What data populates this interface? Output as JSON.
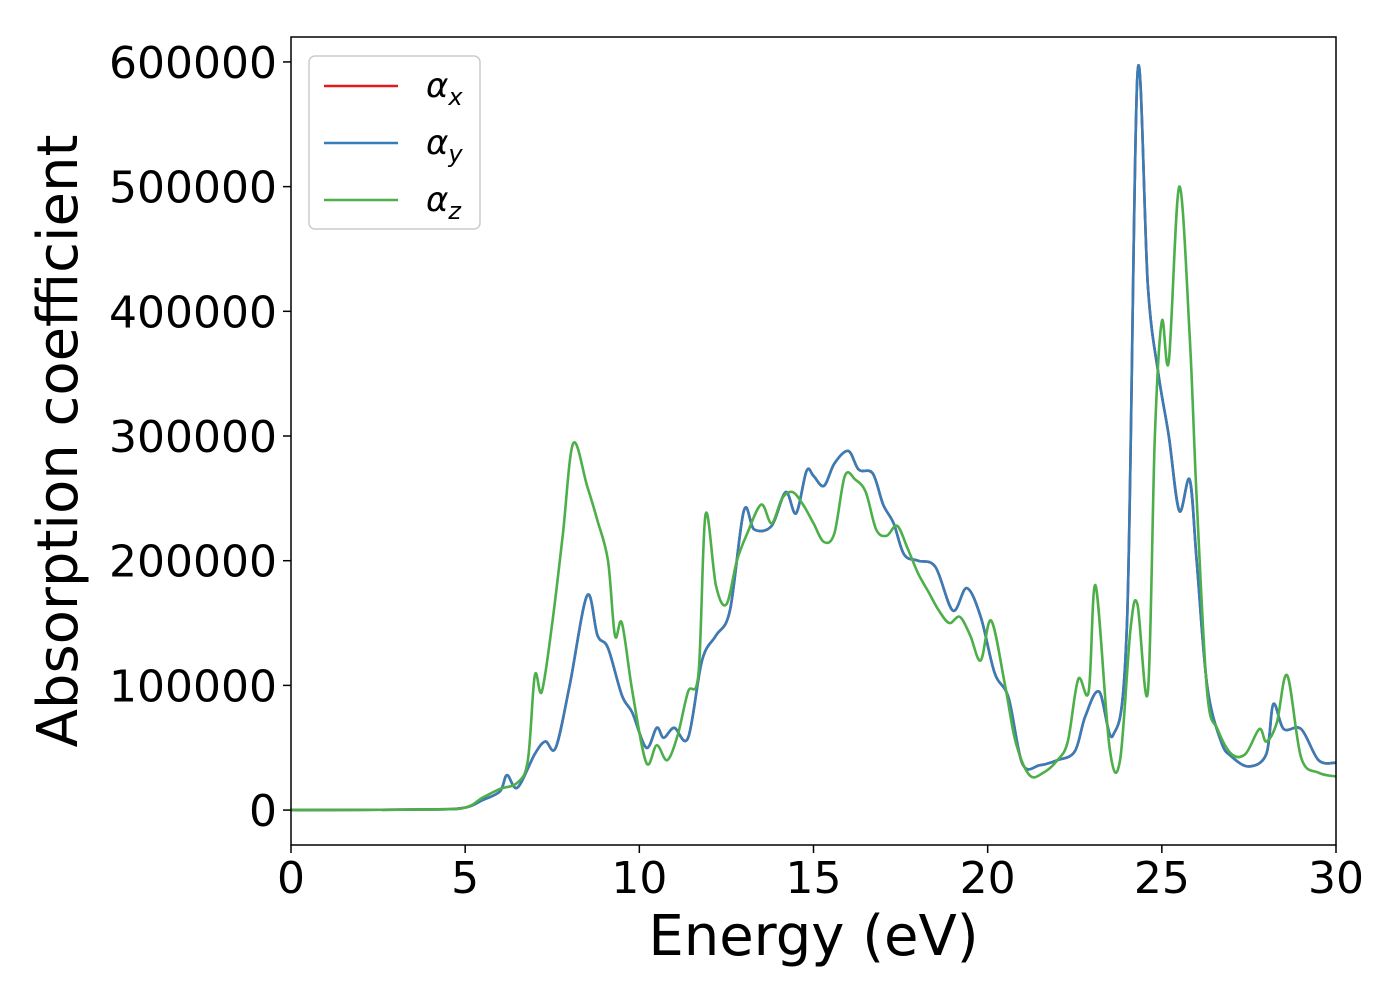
{
  "chart_data": {
    "type": "line",
    "title": "",
    "xlabel": "Energy (eV)",
    "ylabel": "Absorption coefficient",
    "xlim": [
      0,
      30
    ],
    "ylim": [
      -28000,
      620000
    ],
    "xticks": [
      0,
      5,
      10,
      15,
      20,
      25,
      30
    ],
    "yticks": [
      0,
      100000,
      200000,
      300000,
      400000,
      500000,
      600000
    ],
    "grid": false,
    "legend_placement": "top-left",
    "series": [
      {
        "name": "α",
        "subscript": "x",
        "color": "#e41a1c",
        "x": [
          0,
          4,
          5,
          5.5,
          6,
          6.2,
          6.5,
          7,
          7.3,
          7.6,
          8,
          8.5,
          8.8,
          9.1,
          9.5,
          9.8,
          10.2,
          10.5,
          10.7,
          11,
          11.4,
          11.8,
          12.2,
          12.6,
          13,
          13.3,
          13.8,
          14.2,
          14.5,
          14.8,
          15,
          15.3,
          15.6,
          16,
          16.3,
          16.7,
          17,
          17.3,
          17.6,
          18,
          18.5,
          19,
          19.4,
          19.8,
          20.2,
          20.6,
          21,
          21.5,
          22,
          22.5,
          22.8,
          23.2,
          23.6,
          24,
          24.3,
          24.6,
          24.9,
          25.2,
          25.5,
          25.8,
          26,
          26.3,
          26.7,
          27,
          27.5,
          28,
          28.2,
          28.5,
          29,
          29.5,
          30
        ],
        "y": [
          0,
          500,
          2000,
          8000,
          15000,
          28000,
          18000,
          45000,
          55000,
          50000,
          100000,
          172000,
          140000,
          130000,
          92000,
          78000,
          50000,
          66000,
          58000,
          66000,
          58000,
          120000,
          140000,
          160000,
          240000,
          225000,
          228000,
          255000,
          238000,
          272000,
          268000,
          260000,
          278000,
          288000,
          273000,
          270000,
          245000,
          230000,
          205000,
          200000,
          195000,
          160000,
          178000,
          155000,
          110000,
          90000,
          37000,
          36000,
          40000,
          47000,
          75000,
          95000,
          60000,
          150000,
          590000,
          420000,
          350000,
          300000,
          240000,
          265000,
          200000,
          100000,
          55000,
          43000,
          35000,
          45000,
          85000,
          65000,
          65000,
          40000,
          38000
        ]
      },
      {
        "name": "α",
        "subscript": "y",
        "color": "#377eb8",
        "x": [
          0,
          4,
          5,
          5.5,
          6,
          6.2,
          6.5,
          7,
          7.3,
          7.6,
          8,
          8.5,
          8.8,
          9.1,
          9.5,
          9.8,
          10.2,
          10.5,
          10.7,
          11,
          11.4,
          11.8,
          12.2,
          12.6,
          13,
          13.3,
          13.8,
          14.2,
          14.5,
          14.8,
          15,
          15.3,
          15.6,
          16,
          16.3,
          16.7,
          17,
          17.3,
          17.6,
          18,
          18.5,
          19,
          19.4,
          19.8,
          20.2,
          20.6,
          21,
          21.5,
          22,
          22.5,
          22.8,
          23.2,
          23.6,
          24,
          24.3,
          24.6,
          24.9,
          25.2,
          25.5,
          25.8,
          26,
          26.3,
          26.7,
          27,
          27.5,
          28,
          28.2,
          28.5,
          29,
          29.5,
          30
        ],
        "y": [
          0,
          500,
          2000,
          8000,
          15000,
          28000,
          18000,
          45000,
          55000,
          50000,
          100000,
          172000,
          140000,
          130000,
          92000,
          78000,
          50000,
          66000,
          58000,
          66000,
          58000,
          120000,
          140000,
          160000,
          240000,
          225000,
          228000,
          255000,
          238000,
          272000,
          268000,
          260000,
          278000,
          288000,
          273000,
          270000,
          245000,
          230000,
          205000,
          200000,
          195000,
          160000,
          178000,
          155000,
          110000,
          90000,
          37000,
          36000,
          40000,
          47000,
          75000,
          95000,
          60000,
          150000,
          590000,
          420000,
          350000,
          300000,
          240000,
          265000,
          200000,
          100000,
          55000,
          43000,
          35000,
          45000,
          85000,
          65000,
          65000,
          40000,
          38000
        ]
      },
      {
        "name": "α",
        "subscript": "z",
        "color": "#4daf4a",
        "x": [
          0,
          4,
          5,
          5.5,
          6,
          6.5,
          6.8,
          7,
          7.2,
          7.5,
          7.8,
          8.1,
          8.5,
          8.8,
          9.1,
          9.3,
          9.5,
          9.8,
          10.2,
          10.5,
          10.8,
          11.1,
          11.4,
          11.7,
          11.9,
          12.2,
          12.5,
          12.8,
          13.1,
          13.5,
          13.8,
          14.1,
          14.4,
          14.7,
          15,
          15.3,
          15.6,
          15.9,
          16.2,
          16.5,
          16.8,
          17.1,
          17.4,
          17.7,
          18,
          18.3,
          18.6,
          18.9,
          19.2,
          19.5,
          19.8,
          20.1,
          20.5,
          20.8,
          21.2,
          21.6,
          22,
          22.3,
          22.6,
          22.9,
          23.1,
          23.5,
          23.8,
          24.1,
          24.3,
          24.6,
          24.8,
          25,
          25.2,
          25.5,
          25.8,
          26,
          26.3,
          26.6,
          27,
          27.4,
          27.8,
          28,
          28.3,
          28.6,
          29,
          29.5,
          30
        ],
        "y": [
          0,
          500,
          2000,
          10000,
          17000,
          22000,
          40000,
          108000,
          95000,
          150000,
          220000,
          294000,
          260000,
          232000,
          200000,
          140000,
          150000,
          95000,
          38000,
          52000,
          40000,
          60000,
          95000,
          110000,
          237000,
          180000,
          165000,
          200000,
          222000,
          245000,
          230000,
          250000,
          255000,
          245000,
          230000,
          215000,
          222000,
          268000,
          265000,
          255000,
          225000,
          220000,
          228000,
          210000,
          190000,
          175000,
          160000,
          150000,
          155000,
          140000,
          120000,
          152000,
          100000,
          55000,
          28000,
          30000,
          40000,
          55000,
          105000,
          95000,
          180000,
          50000,
          40000,
          145000,
          165000,
          95000,
          300000,
          392000,
          360000,
          500000,
          380000,
          250000,
          95000,
          65000,
          45000,
          45000,
          65000,
          55000,
          70000,
          108000,
          42000,
          30000,
          27000
        ]
      }
    ]
  }
}
